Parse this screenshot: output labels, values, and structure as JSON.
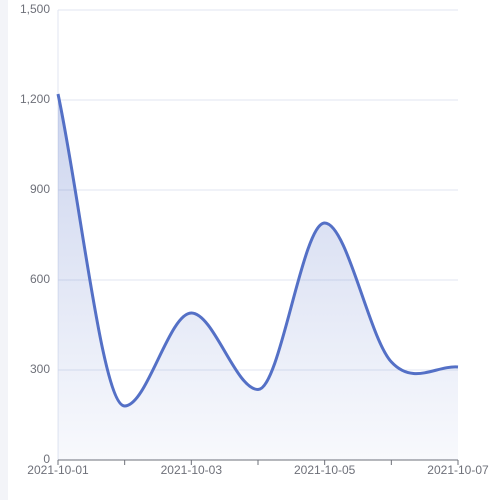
{
  "chart_data": {
    "type": "line",
    "smooth": true,
    "area": true,
    "categories": [
      "2021-10-01",
      null,
      "2021-10-03",
      null,
      "2021-10-05",
      null,
      "2021-10-07"
    ],
    "values": [
      1220,
      180,
      490,
      235,
      790,
      327,
      310
    ],
    "color": "#5470c6",
    "ylim": [
      0,
      1500
    ],
    "yticks": [
      0,
      300,
      600,
      900,
      {
        "value": 1200,
        "label": "1,200"
      },
      {
        "value": 1500,
        "label": "1,500"
      }
    ],
    "grid": true
  }
}
